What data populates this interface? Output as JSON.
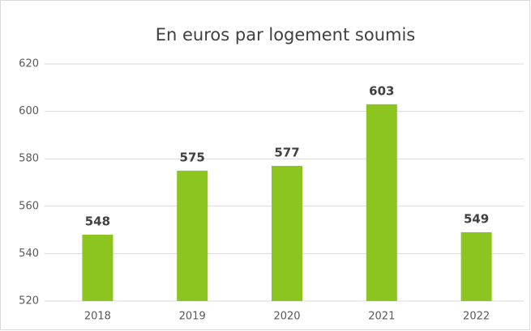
{
  "chart_data": {
    "type": "bar",
    "title": "En euros par logement soumis",
    "categories": [
      "2018",
      "2019",
      "2020",
      "2021",
      "2022"
    ],
    "values": [
      548,
      575,
      577,
      603,
      549
    ],
    "color": "#8cc420",
    "ylim": [
      520,
      620
    ],
    "yticks": [
      520,
      540,
      560,
      580,
      600,
      620
    ],
    "grid": true
  }
}
